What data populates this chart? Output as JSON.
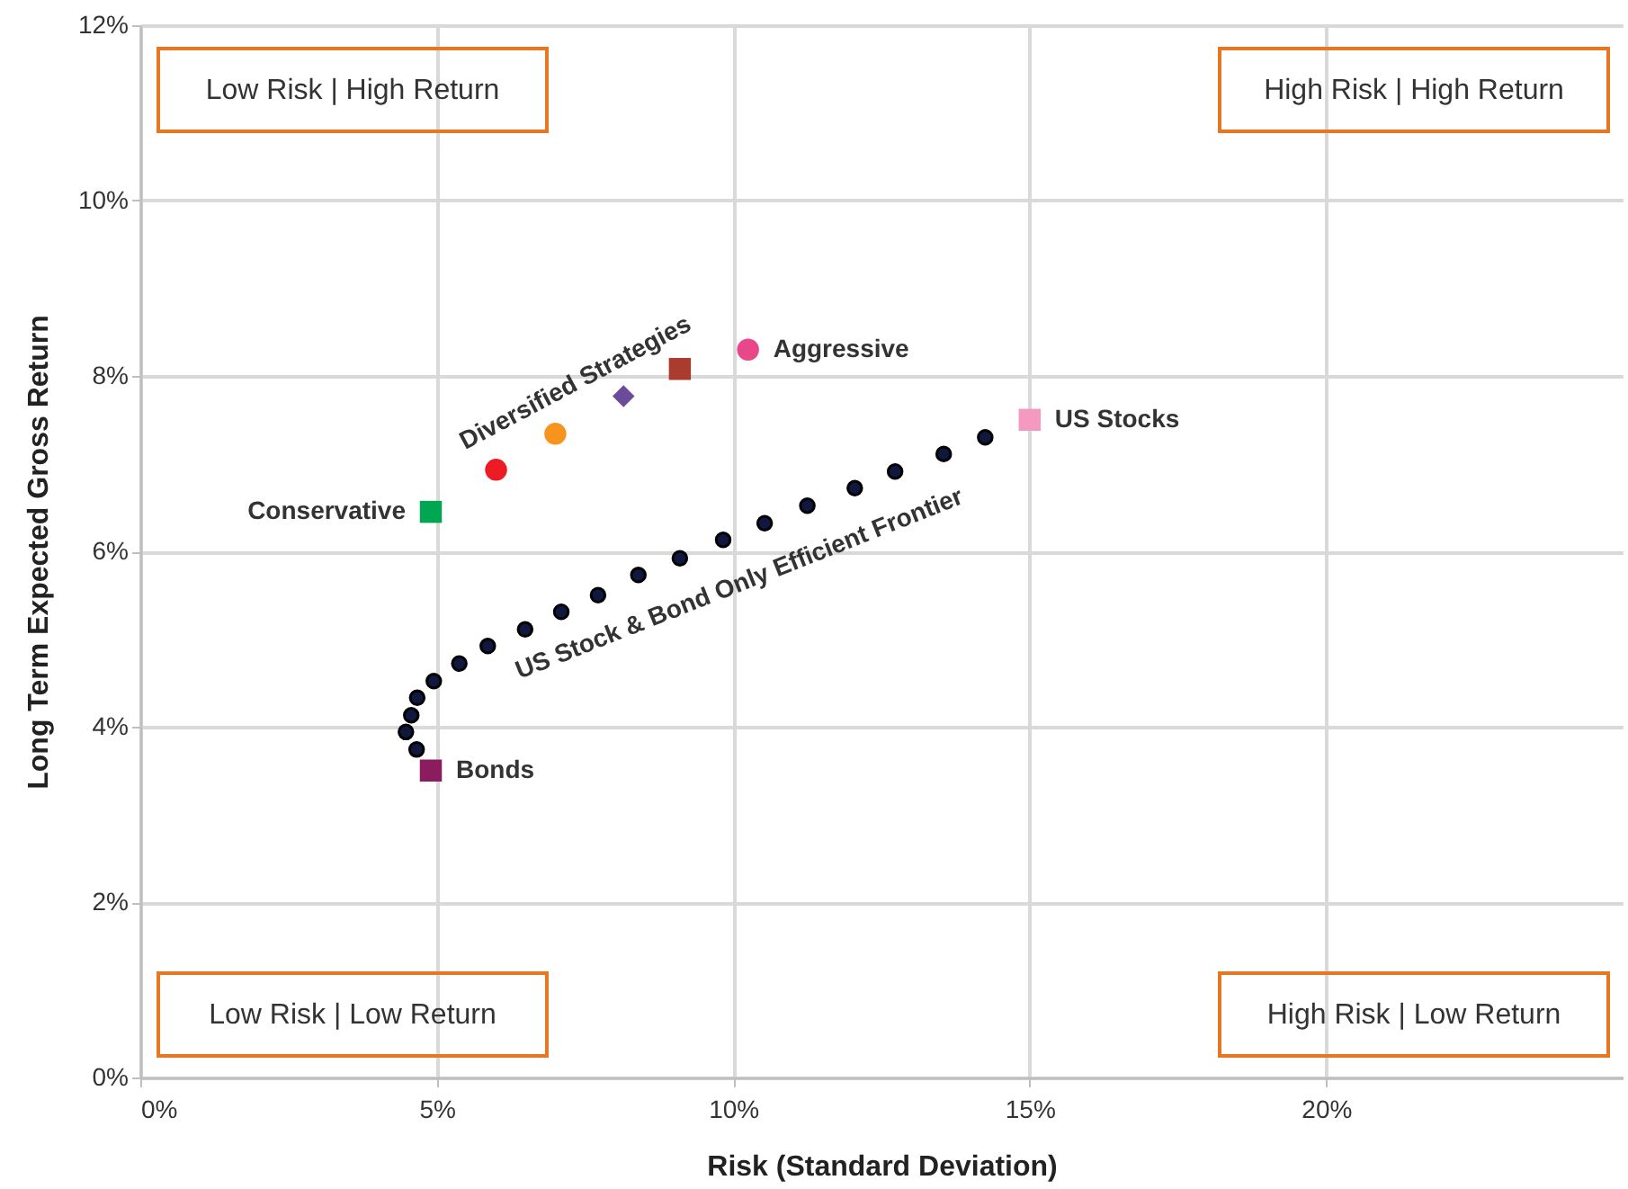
{
  "chart_data": {
    "type": "scatter",
    "xlabel": "Risk (Standard Deviation)",
    "ylabel": "Long Term Expected Gross Return",
    "xlim": [
      0,
      25
    ],
    "ylim": [
      0,
      12
    ],
    "xticks": [
      {
        "value": 0,
        "label": "0%"
      },
      {
        "value": 5,
        "label": "5%"
      },
      {
        "value": 10,
        "label": "10%"
      },
      {
        "value": 15,
        "label": "15%"
      },
      {
        "value": 20,
        "label": "20%"
      }
    ],
    "yticks": [
      {
        "value": 0,
        "label": "0%"
      },
      {
        "value": 2,
        "label": "2%"
      },
      {
        "value": 4,
        "label": "4%"
      },
      {
        "value": 6,
        "label": "6%"
      },
      {
        "value": 8,
        "label": "8%"
      },
      {
        "value": 10,
        "label": "10%"
      },
      {
        "value": 12,
        "label": "12%"
      }
    ],
    "grid": true,
    "series": [
      {
        "name": "US Stock & Bond Only Efficient Frontier",
        "color": "#101840",
        "marker": "circle",
        "x": [
          4.66,
          4.48,
          4.57,
          4.67,
          4.95,
          5.38,
          5.86,
          6.49,
          7.1,
          7.72,
          8.4,
          9.1,
          9.83,
          10.53,
          11.25,
          12.05,
          12.73,
          13.55,
          14.25
        ],
        "values": [
          3.74,
          3.94,
          4.13,
          4.33,
          4.52,
          4.72,
          4.92,
          5.11,
          5.31,
          5.5,
          5.73,
          5.92,
          6.13,
          6.32,
          6.52,
          6.72,
          6.91,
          7.11,
          7.3
        ]
      },
      {
        "name": "Conservative",
        "color": "#00a651",
        "marker": "square",
        "x": [
          4.9
        ],
        "values": [
          6.45
        ]
      },
      {
        "color": "#ed1c24",
        "marker": "circle",
        "x": [
          6.0
        ],
        "values": [
          6.93
        ]
      },
      {
        "color": "#f7941d",
        "marker": "circle",
        "x": [
          7.0
        ],
        "values": [
          7.34
        ]
      },
      {
        "color": "#6b4c9a",
        "marker": "diamond",
        "x": [
          8.15
        ],
        "values": [
          7.77
        ]
      },
      {
        "color": "#a93c2e",
        "marker": "square",
        "x": [
          9.1
        ],
        "values": [
          8.08
        ]
      },
      {
        "name": "Aggressive",
        "color": "#e8488a",
        "marker": "circle",
        "x": [
          10.25
        ],
        "values": [
          8.3
        ]
      },
      {
        "name": "US Stocks",
        "color": "#f49ac1",
        "marker": "square",
        "x": [
          15.0
        ],
        "values": [
          7.5
        ]
      },
      {
        "name": "Bonds",
        "color": "#8b1c5e",
        "marker": "square",
        "x": [
          4.9
        ],
        "values": [
          3.5
        ]
      }
    ],
    "annotations": [
      "Diversified Strategies",
      "Low Risk | High Return",
      "High Risk | High Return",
      "Low Risk | Low Return",
      "High Risk | Low Return"
    ]
  }
}
